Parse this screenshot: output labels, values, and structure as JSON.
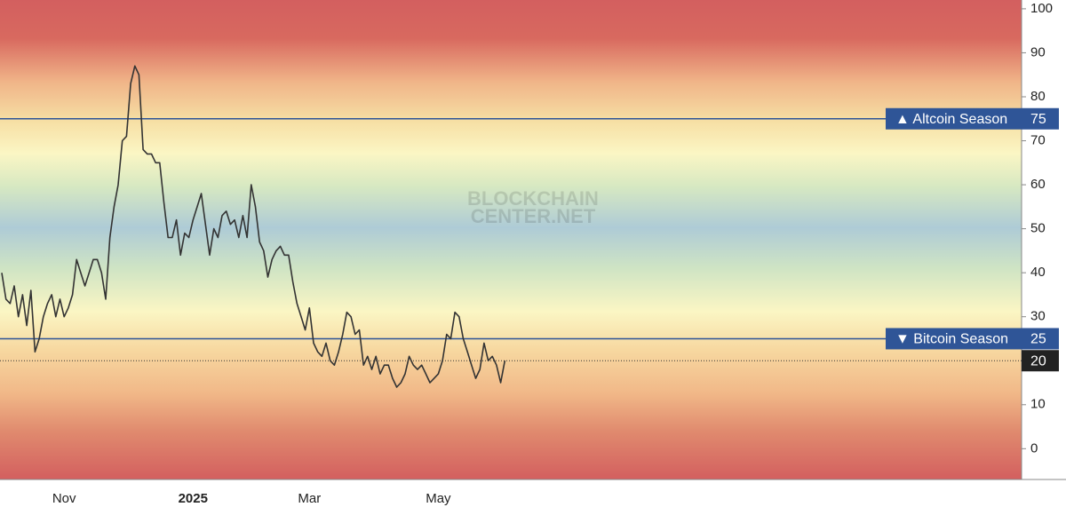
{
  "chart_data": {
    "type": "line",
    "watermark": [
      "BLOCKCHAIN",
      "CENTER.NET"
    ],
    "categories": [
      null,
      null,
      null,
      null,
      null,
      null,
      null,
      null,
      null,
      null,
      null,
      null,
      null,
      null,
      null,
      "Nov",
      null,
      null,
      null,
      null,
      null,
      null,
      null,
      null,
      null,
      null,
      null,
      null,
      null,
      null,
      null,
      null,
      null,
      null,
      null,
      null,
      null,
      null,
      null,
      null,
      null,
      null,
      null,
      null,
      null,
      null,
      "2025",
      null,
      null,
      null,
      null,
      null,
      null,
      null,
      null,
      null,
      null,
      null,
      null,
      null,
      null,
      null,
      null,
      null,
      null,
      null,
      null,
      null,
      null,
      null,
      null,
      null,
      null,
      null,
      "Mar",
      null,
      null,
      null,
      null,
      null,
      null,
      null,
      null,
      null,
      null,
      null,
      null,
      null,
      null,
      null,
      null,
      null,
      null,
      null,
      null,
      null,
      null,
      null,
      null,
      null,
      null,
      null,
      null,
      null,
      null,
      "May",
      null,
      null,
      null,
      null,
      null,
      null,
      null,
      null,
      null,
      null,
      null,
      null,
      null,
      null,
      null,
      null
    ],
    "values": [
      40,
      34,
      33,
      37,
      30,
      35,
      28,
      36,
      22,
      25,
      30,
      33,
      35,
      30,
      34,
      30,
      32,
      35,
      43,
      40,
      37,
      40,
      43,
      43,
      40,
      34,
      48,
      55,
      60,
      70,
      71,
      83,
      87,
      85,
      68,
      67,
      67,
      65,
      65,
      56,
      48,
      48,
      52,
      44,
      49,
      48,
      52,
      55,
      58,
      51,
      44,
      50,
      48,
      53,
      54,
      51,
      52,
      48,
      53,
      48,
      60,
      55,
      47,
      45,
      39,
      43,
      45,
      46,
      44,
      44,
      38,
      33,
      30,
      27,
      32,
      24,
      22,
      21,
      24,
      20,
      19,
      22,
      26,
      31,
      30,
      26,
      27,
      19,
      21,
      18,
      21,
      17,
      19,
      19,
      16,
      14,
      15,
      17,
      21,
      19,
      18,
      19,
      17,
      15,
      16,
      17,
      20,
      26,
      25,
      31,
      30,
      25,
      22,
      19,
      16,
      18,
      24,
      20,
      21,
      19,
      15,
      20
    ],
    "color": "#333333",
    "ylim": [
      -7,
      102
    ],
    "yticks": [
      0,
      10,
      20,
      30,
      40,
      50,
      60,
      70,
      80,
      90,
      100
    ],
    "thresholds": [
      {
        "label": "▲ Altcoin Season",
        "value": 75
      },
      {
        "label": "▼ Bitcoin Season",
        "value": 25
      }
    ],
    "threshold_color": "#2f5597"
  }
}
